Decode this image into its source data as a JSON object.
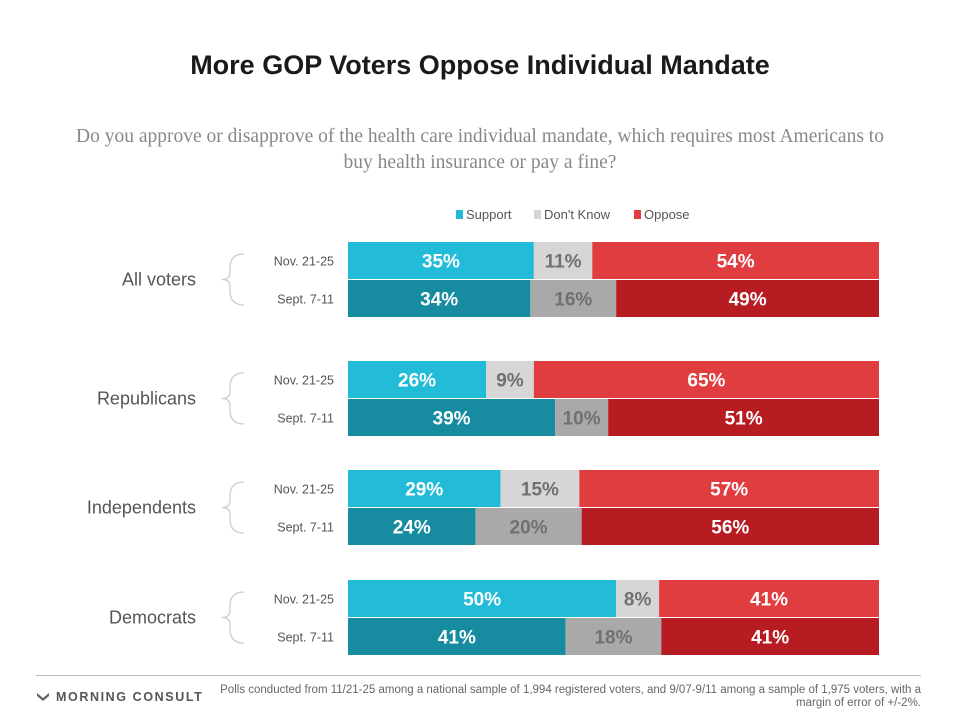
{
  "chart_data": {
    "type": "bar",
    "orientation": "horizontal",
    "stacked": true,
    "title": "More GOP Voters Oppose Individual Mandate",
    "subtitle": "Do you approve or disapprove of the health care individual mandate, which requires most Americans to buy health insurance or pay a fine?",
    "legend": [
      "Support",
      "Don't Know",
      "Oppose"
    ],
    "legend_position": "top",
    "groups": [
      {
        "label": "All voters",
        "rows": [
          {
            "period": "Nov. 21-25",
            "values": [
              35,
              11,
              54
            ],
            "labels": [
              "35%",
              "11%",
              "54%"
            ]
          },
          {
            "period": "Sept. 7-11",
            "values": [
              34,
              16,
              49
            ],
            "labels": [
              "34%",
              "16%",
              "49%"
            ]
          }
        ]
      },
      {
        "label": "Republicans",
        "rows": [
          {
            "period": "Nov. 21-25",
            "values": [
              26,
              9,
              65
            ],
            "labels": [
              "26%",
              "9%",
              "65%"
            ]
          },
          {
            "period": "Sept. 7-11",
            "values": [
              39,
              10,
              51
            ],
            "labels": [
              "39%",
              "10%",
              "51%"
            ]
          }
        ]
      },
      {
        "label": "Independents",
        "rows": [
          {
            "period": "Nov. 21-25",
            "values": [
              29,
              15,
              57
            ],
            "labels": [
              "29%",
              "15%",
              "57%"
            ]
          },
          {
            "period": "Sept. 7-11",
            "values": [
              24,
              20,
              56
            ],
            "labels": [
              "24%",
              "20%",
              "56%"
            ]
          }
        ]
      },
      {
        "label": "Democrats",
        "rows": [
          {
            "period": "Nov. 21-25",
            "values": [
              50,
              8,
              41
            ],
            "labels": [
              "50%",
              "8%",
              "41%"
            ]
          },
          {
            "period": "Sept. 7-11",
            "values": [
              41,
              18,
              41
            ],
            "labels": [
              "41%",
              "18%",
              "41%"
            ]
          }
        ]
      }
    ],
    "grid": false
  },
  "colors": {
    "support_recent": "#22bcd9",
    "support_prior": "#178ca0",
    "dontknow_recent": "#d6d6d6",
    "dontknow_prior": "#a9a9a9",
    "oppose_recent": "#e03d40",
    "oppose_prior": "#b71c22",
    "dontknow_text": "#707070",
    "bar_text": "#ffffff",
    "legend_support": "#22bcd9",
    "legend_dontknow": "#d6d6d6",
    "legend_oppose": "#e03d40"
  },
  "brand": "MORNING CONSULT",
  "footnote": "Polls conducted from 11/21-25 among a national sample of 1,994 registered voters, and 9/07-9/11 among a sample of 1,975 voters, with a margin of error of +/-2%."
}
